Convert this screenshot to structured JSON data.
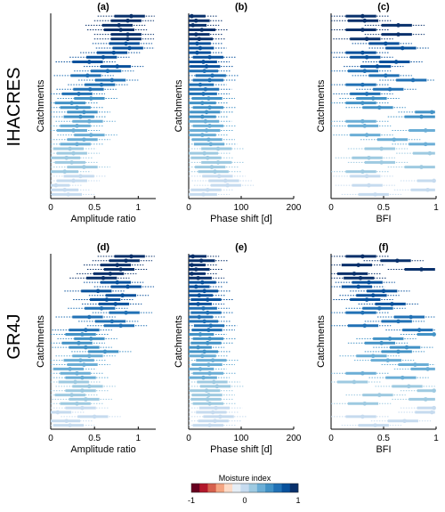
{
  "models": [
    "IHACRES",
    "GR4J"
  ],
  "colorbar": {
    "title": "Moisture index",
    "ticks": [
      "-1",
      "0",
      "1"
    ],
    "colors": [
      "#67001f",
      "#b2182b",
      "#d6604d",
      "#f4a582",
      "#fddbc7",
      "#e6eef6",
      "#c6dbef",
      "#9ecae1",
      "#6baed6",
      "#4292c6",
      "#2171b5",
      "#08519c",
      "#08306b"
    ]
  },
  "chart_data": [
    {
      "type": "scatter",
      "panel": "(a)",
      "model": "IHACRES",
      "xlabel": "Amplitude ratio",
      "ylabel": "Catchments",
      "xlim": [
        0,
        1.2
      ],
      "xticks": [
        "0",
        "0.5",
        "1"
      ],
      "points": [
        0.92,
        0.88,
        0.78,
        0.8,
        0.88,
        0.88,
        0.86,
        0.9,
        0.72,
        0.6,
        0.44,
        0.76,
        0.65,
        0.42,
        0.7,
        0.58,
        0.45,
        0.32,
        0.46,
        0.24,
        0.3,
        0.38,
        0.34,
        0.44,
        0.3,
        0.26,
        0.46,
        0.38,
        0.3,
        0.22,
        0.26,
        0.18,
        0.24,
        0.38,
        0.16,
        0.34,
        0.26,
        0.06,
        0.16,
        0.2
      ]
    },
    {
      "type": "scatter",
      "panel": "(b)",
      "model": "IHACRES",
      "xlabel": "Phase shift [d]",
      "ylabel": "Catchments",
      "xlim": [
        0,
        200
      ],
      "xticks": [
        "0",
        "100",
        "200"
      ],
      "points": [
        6,
        14,
        8,
        25,
        14,
        20,
        16,
        22,
        16,
        40,
        28,
        34,
        30,
        45,
        40,
        22,
        32,
        28,
        38,
        26,
        40,
        34,
        26,
        32,
        40,
        34,
        26,
        38,
        42,
        56,
        30,
        36,
        56,
        44,
        50,
        58,
        70,
        74,
        36,
        28
      ]
    },
    {
      "type": "scatter",
      "panel": "(c)",
      "model": "IHACRES",
      "xlabel": "BFI",
      "ylabel": "Catchments",
      "xlim": [
        0,
        1
      ],
      "xticks": [
        "0",
        "0.5",
        "1"
      ],
      "points": [
        0.3,
        0.32,
        0.64,
        0.3,
        0.64,
        0.34,
        0.52,
        0.68,
        0.3,
        0.34,
        0.62,
        0.44,
        0.32,
        0.52,
        0.78,
        0.3,
        0.56,
        0.34,
        0.4,
        0.3,
        0.46,
        0.96,
        0.86,
        0.3,
        0.32,
        0.9,
        0.34,
        0.6,
        0.9,
        0.48,
        0.94,
        0.36,
        0.48,
        0.86,
        0.3,
        0.34,
        0.98,
        0.36,
        0.92,
        0.42
      ]
    },
    {
      "type": "scatter",
      "panel": "(d)",
      "model": "GR4J",
      "xlabel": "Amplitude ratio",
      "ylabel": "Catchments",
      "xlim": [
        0,
        1.2
      ],
      "xticks": [
        "0",
        "0.5",
        "1"
      ],
      "points": [
        0.92,
        0.86,
        0.76,
        0.8,
        0.68,
        0.6,
        0.76,
        0.88,
        0.54,
        0.82,
        0.64,
        0.74,
        0.58,
        0.86,
        0.44,
        0.7,
        0.8,
        0.4,
        0.36,
        0.46,
        0.32,
        0.4,
        0.62,
        0.44,
        0.34,
        0.38,
        0.22,
        0.3,
        0.36,
        0.28,
        0.44,
        0.36,
        0.24,
        0.4,
        0.3,
        0.36,
        0.08,
        0.5,
        0.18,
        0.22
      ]
    },
    {
      "type": "scatter",
      "panel": "(e)",
      "model": "GR4J",
      "xlabel": "Phase shift [d]",
      "ylabel": "Catchments",
      "xlim": [
        0,
        200
      ],
      "xticks": [
        "0",
        "100",
        "200"
      ],
      "points": [
        8,
        24,
        6,
        14,
        6,
        18,
        26,
        14,
        30,
        20,
        36,
        18,
        28,
        36,
        20,
        30,
        42,
        38,
        22,
        40,
        36,
        18,
        30,
        26,
        46,
        38,
        22,
        40,
        28,
        48,
        54,
        34,
        38,
        36,
        40,
        52,
        46,
        60,
        50,
        40
      ]
    },
    {
      "type": "scatter",
      "panel": "(f)",
      "model": "GR4J",
      "xlabel": "BFI",
      "ylabel": "Catchments",
      "xlim": [
        0,
        1
      ],
      "xticks": [
        "0",
        "0.5",
        "1"
      ],
      "points": [
        0.3,
        0.63,
        0.26,
        0.86,
        0.22,
        0.28,
        0.36,
        0.26,
        0.5,
        0.4,
        0.34,
        0.58,
        0.46,
        0.3,
        0.76,
        0.64,
        0.32,
        0.84,
        0.98,
        0.56,
        0.48,
        0.72,
        0.64,
        0.4,
        0.54,
        0.8,
        0.92,
        0.3,
        0.68,
        0.22,
        0.74,
        0.98,
        0.46,
        0.9,
        0.32,
        0.98,
        0.96,
        0.3,
        0.7,
        0.42
      ]
    }
  ]
}
